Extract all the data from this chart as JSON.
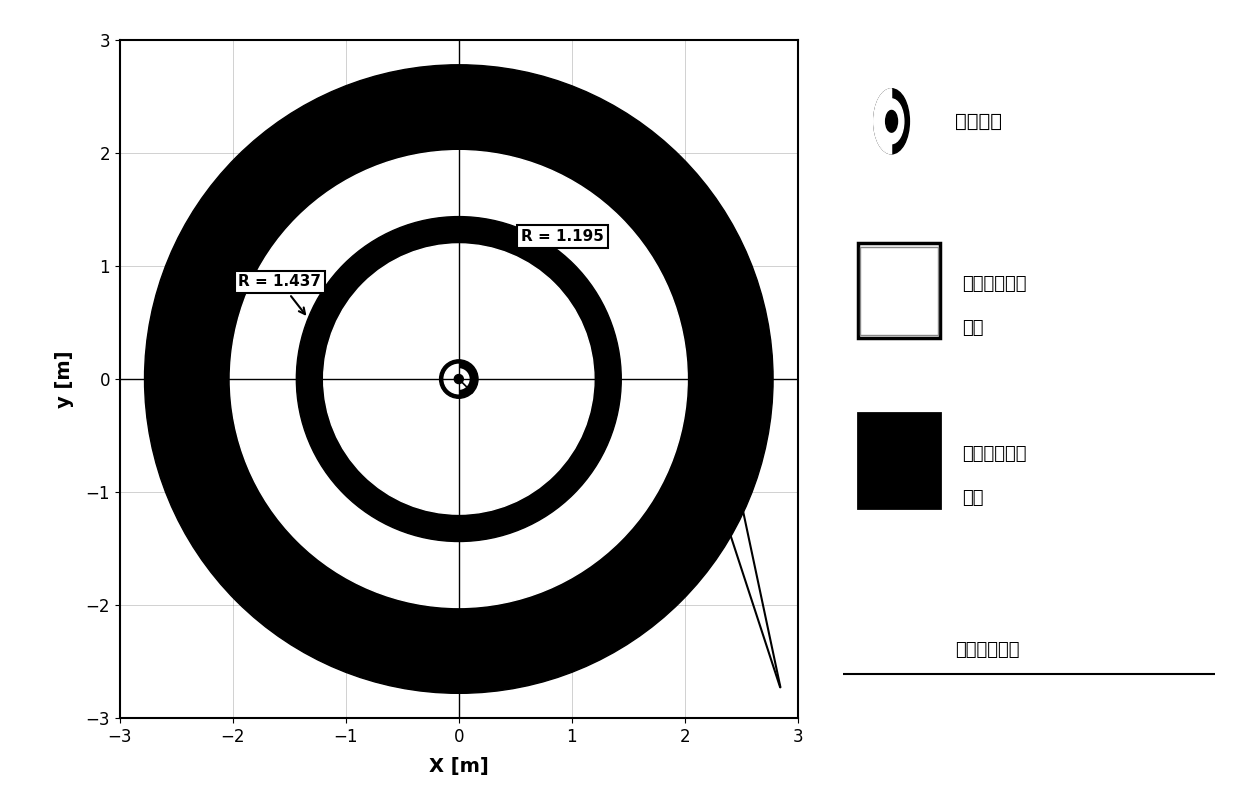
{
  "xlabel": "X [m]",
  "ylabel": "y [m]",
  "xlim": [
    -3,
    3
  ],
  "ylim": [
    -3,
    3
  ],
  "xticks": [
    -3,
    -2,
    -1,
    0,
    1,
    2,
    3
  ],
  "yticks": [
    -3,
    -2,
    -1,
    0,
    1,
    2,
    3
  ],
  "R_outer": 2.78,
  "R_white_outer": 2.02,
  "R_mid_outer": 1.437,
  "R_mid_inner": 1.195,
  "R_center": 0.17,
  "R_center_white": 0.07,
  "annotation_R1": "R = 1.195",
  "annotation_R2": "R = 1.437",
  "legend_label1": "系统质心",
  "legend_label2_line1": "路径无关工作",
  "legend_label2_line2": "空间",
  "legend_label3_line1": "路径相关工作",
  "legend_label3_line2": "空间",
  "legend_label4": "可达工作空间",
  "figsize": [
    12.4,
    7.98
  ],
  "dpi": 100
}
